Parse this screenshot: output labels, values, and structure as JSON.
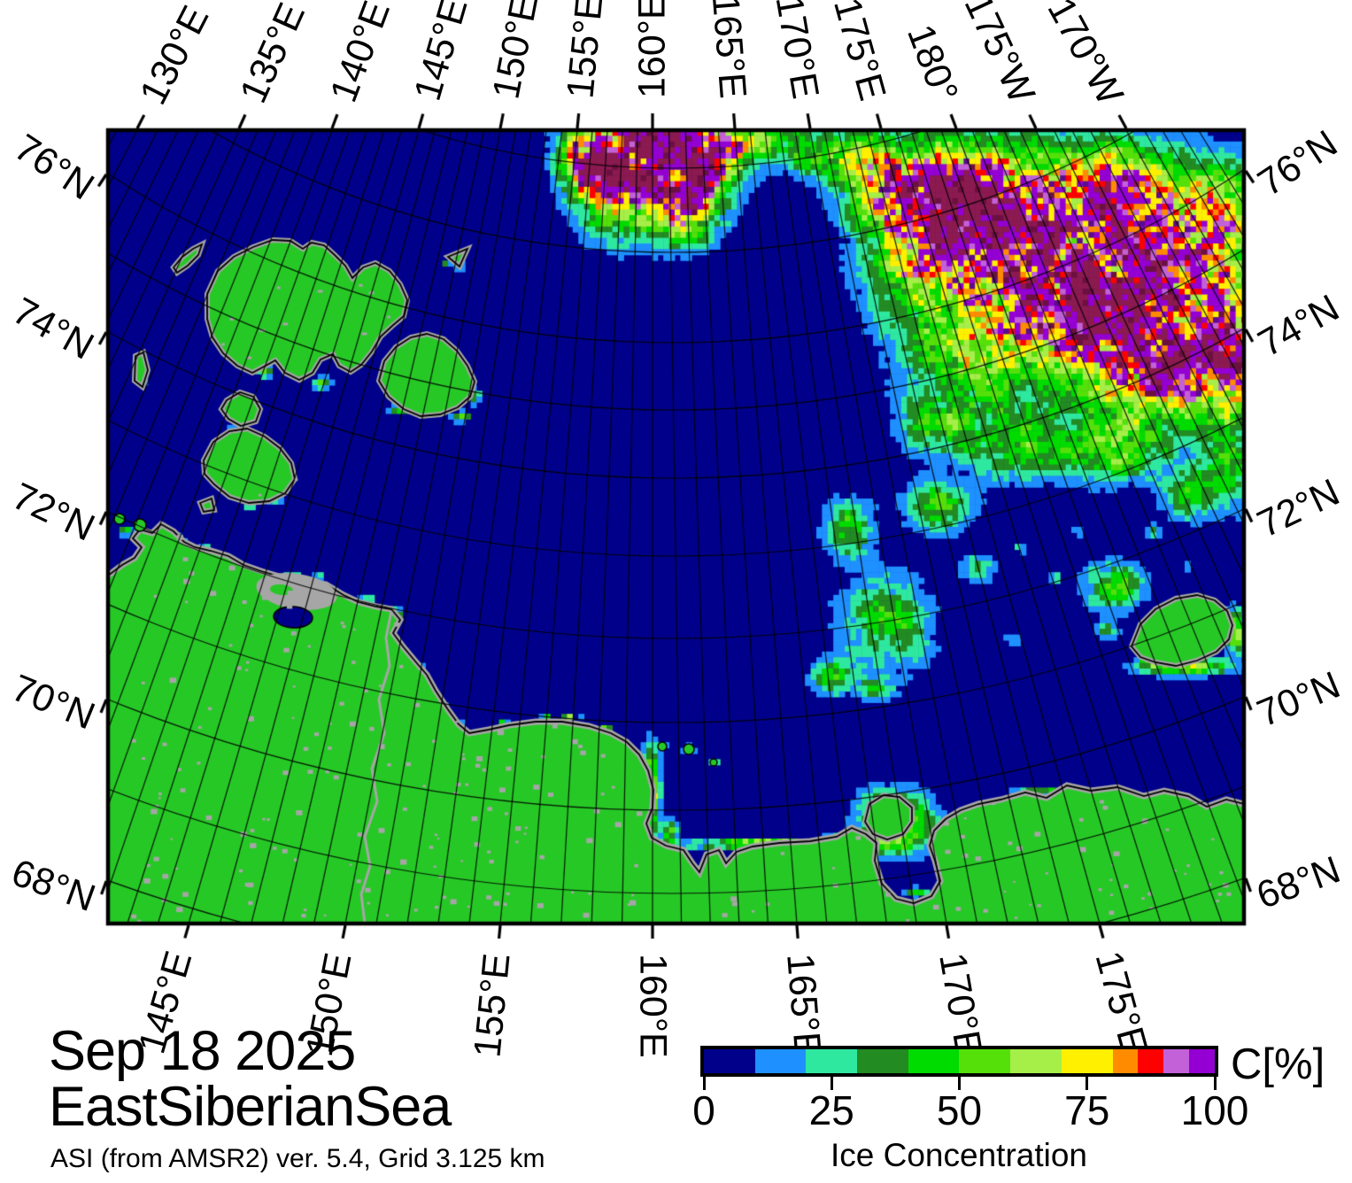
{
  "figure": {
    "date": "Sep 18 2025",
    "region": "EastSiberianSea",
    "source_line": "ASI (from AMSR2) ver. 5.4,  Grid 3.125 km"
  },
  "axes": {
    "top": {
      "labels": [
        "130°E",
        "135°E",
        "140°E",
        "145°E",
        "150°E",
        "155°E",
        "160°E",
        "165°E",
        "170°E",
        "175°E",
        "180°",
        "175°W",
        "170°W"
      ]
    },
    "bottom": {
      "labels": [
        "145°E",
        "150°E",
        "155°E",
        "160°E",
        "165°E",
        "170°E",
        "175°E"
      ]
    },
    "left": {
      "labels": [
        "76°N",
        "74°N",
        "72°N",
        "70°N",
        "68°N"
      ]
    },
    "right": {
      "labels": [
        "76°N",
        "74°N",
        "72°N",
        "70°N",
        "68°N"
      ]
    }
  },
  "colorbar": {
    "unit": "C[%]",
    "label": "Ice Concentration",
    "tick_labels": [
      "0",
      "25",
      "50",
      "75",
      "100"
    ],
    "scale": [
      {
        "from": 0,
        "to": 10,
        "color": "#00008B"
      },
      {
        "from": 10,
        "to": 20,
        "color": "#1E90FF"
      },
      {
        "from": 20,
        "to": 30,
        "color": "#2EE8A0"
      },
      {
        "from": 30,
        "to": 40,
        "color": "#228B22"
      },
      {
        "from": 40,
        "to": 50,
        "color": "#00DB00"
      },
      {
        "from": 50,
        "to": 60,
        "color": "#55E00A"
      },
      {
        "from": 60,
        "to": 70,
        "color": "#A6EE48"
      },
      {
        "from": 70,
        "to": 80,
        "color": "#FFF000"
      },
      {
        "from": 80,
        "to": 85,
        "color": "#FF8C00"
      },
      {
        "from": 85,
        "to": 90,
        "color": "#FF0000"
      },
      {
        "from": 90,
        "to": 95,
        "color": "#C361D8"
      },
      {
        "from": 95,
        "to": 100,
        "color": "#9400D3"
      }
    ]
  },
  "map_colors": {
    "ocean": "#00008B",
    "land": "#26C826",
    "no_data_gray": "#A6A6A6",
    "grid": "#000000",
    "ice_core": "#8B1A50"
  }
}
